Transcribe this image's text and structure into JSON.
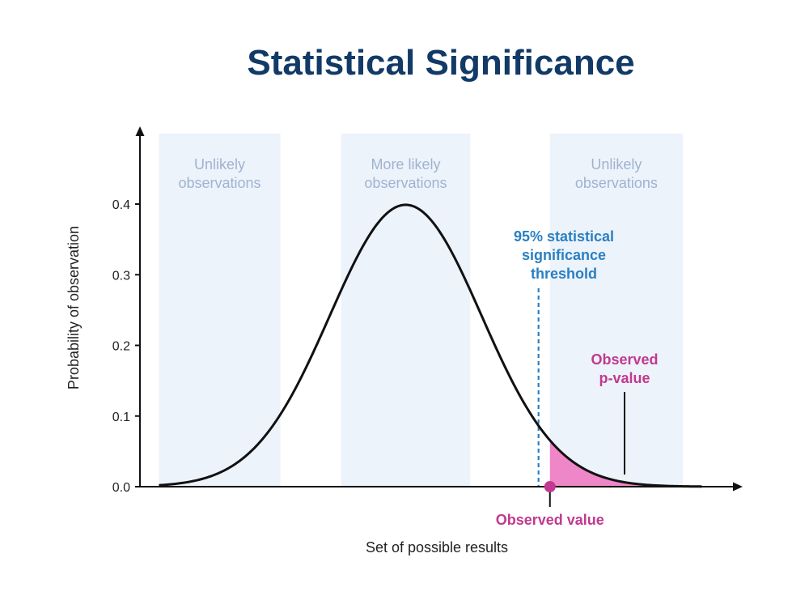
{
  "chart_data": {
    "type": "area",
    "title": "Statistical Significance",
    "xlabel": "Set of possible results",
    "ylabel": "Probability of observation",
    "xlim": [
      -3.5,
      4.3
    ],
    "ylim": [
      0,
      0.4
    ],
    "yticks": [
      "0.0",
      "0.1",
      "0.2",
      "0.3",
      "0.4"
    ],
    "curve": {
      "mean": 0,
      "sd": 1,
      "x_start": -3.25,
      "x_end": 3.9
    },
    "regions": [
      {
        "label_lines": [
          "Unlikely",
          "observations"
        ],
        "x_range": [
          -3.25,
          -1.65
        ]
      },
      {
        "label_lines": [
          "More likely",
          "observations"
        ],
        "x_range": [
          -0.85,
          0.85
        ]
      },
      {
        "label_lines": [
          "Unlikely",
          "observations"
        ],
        "x_range": [
          1.9,
          3.65
        ]
      }
    ],
    "threshold": {
      "x": 1.75,
      "label_lines": [
        "95% statistical",
        "significance",
        "threshold"
      ]
    },
    "observed": {
      "x": 1.9,
      "label": "Observed value"
    },
    "p_value": {
      "label_lines": [
        "Observed",
        "p-value"
      ],
      "x_range": [
        1.9,
        3.65
      ]
    },
    "colors": {
      "title": "#123a67",
      "region_fill": "#edf3fb",
      "region_text": "#9fb3cf",
      "threshold": "#2a80c2",
      "observed": "#c2398f",
      "pvalue_fill": "#ee86c7",
      "curve": "#111111",
      "axis": "#111111"
    }
  }
}
